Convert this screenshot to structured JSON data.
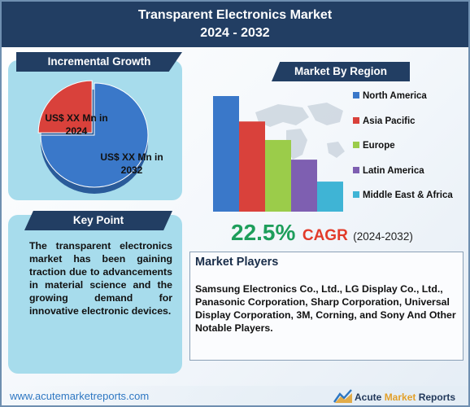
{
  "header": {
    "title_line1": "Transparent Electronics Market",
    "title_line2": "2024 - 2032"
  },
  "incremental_growth": {
    "title": "Incremental Growth",
    "label_2024": "US$ XX Mn in 2024",
    "label_2032": "US$ XX Mn in 2032"
  },
  "key_point": {
    "title": "Key Point",
    "text": "The transparent electronics market has been gaining traction due to advancements in material science and the growing demand for innovative electronic devices."
  },
  "market_by_region": {
    "title": "Market By Region"
  },
  "cagr": {
    "value": "22.5%",
    "label": "CAGR",
    "period": "(2024-2032)"
  },
  "market_players": {
    "title": "Market Players",
    "text": "Samsung Electronics Co., Ltd., LG Display Co., Ltd., Panasonic Corporation, Sharp Corporation, Universal Display Corporation, 3M, Corning, and Sony And Other Notable Players."
  },
  "footer": {
    "url": "www.acutemarketreports.com",
    "logo_word1": "Acute",
    "logo_word2": "Market",
    "logo_word3": "Reports"
  },
  "colors": {
    "header_bg": "#223e63",
    "pie_2024": "#d9413b",
    "pie_2032": "#3a78c9",
    "cagr_value": "#1e9e5b",
    "cagr_label": "#e23b2a"
  },
  "chart_data": [
    {
      "type": "pie",
      "title": "Incremental Growth",
      "categories": [
        "US$ XX Mn in 2024",
        "US$ XX Mn in 2032"
      ],
      "values": [
        25,
        75
      ],
      "colors": [
        "#d9413b",
        "#3a78c9"
      ]
    },
    {
      "type": "bar",
      "title": "Market By Region",
      "categories": [
        "North America",
        "Asia Pacific",
        "Europe",
        "Latin America",
        "Middle East & Africa"
      ],
      "values": [
        100,
        78,
        62,
        45,
        26
      ],
      "colors": [
        "#3a78c9",
        "#d9413b",
        "#9bcc4a",
        "#7e5fb1",
        "#3fb4d5"
      ],
      "legend_position": "right",
      "grid": false
    }
  ]
}
